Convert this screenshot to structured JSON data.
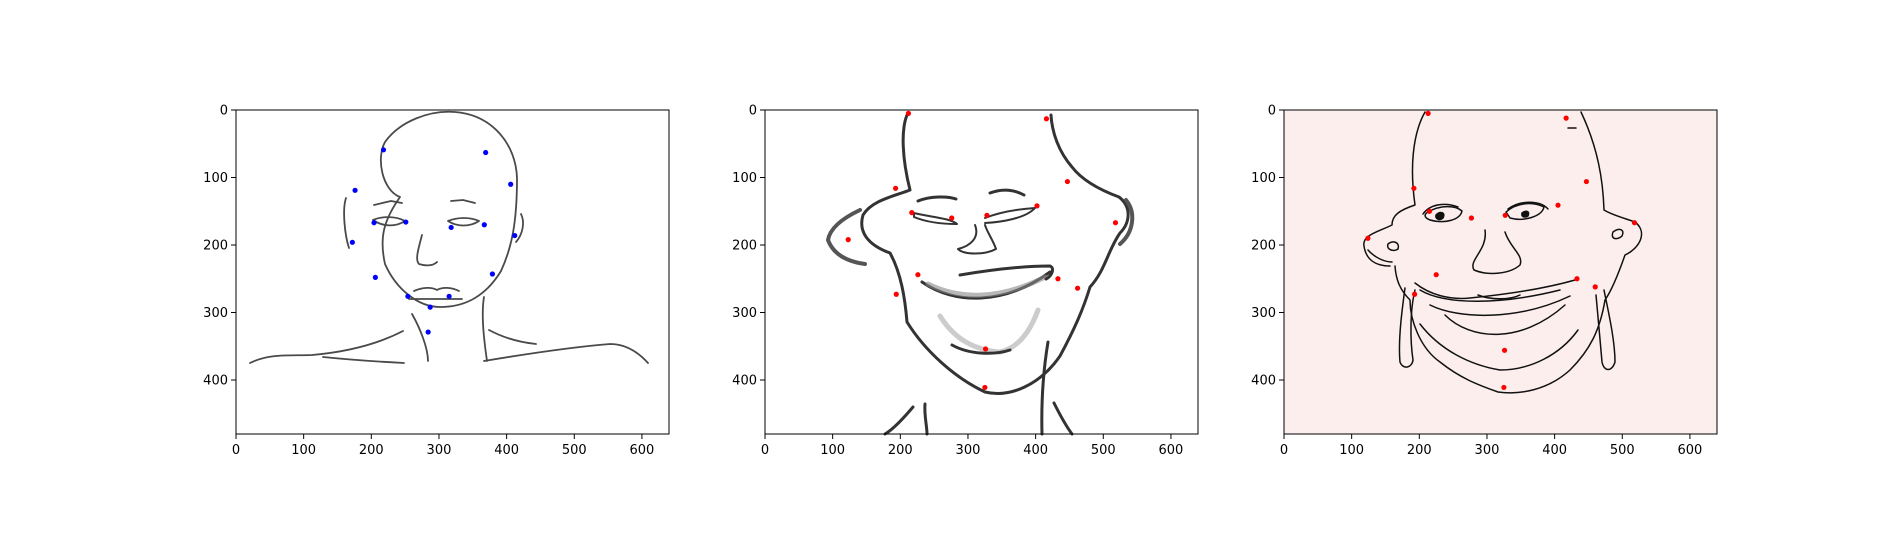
{
  "figure": {
    "background": "#ffffff",
    "panel_count": 3
  },
  "chart_data": [
    {
      "type": "scatter",
      "title": "",
      "xlabel": "",
      "ylabel": "",
      "xlim": [
        0,
        640
      ],
      "ylim": [
        480,
        0
      ],
      "y_inverted": true,
      "grid": false,
      "xticks": [
        0,
        100,
        200,
        300,
        400,
        500,
        600
      ],
      "yticks": [
        0,
        100,
        200,
        300,
        400
      ],
      "image_description": "line sketch of a neutral face with neck and shoulders",
      "image_background": "#ffffff",
      "point_color": "#0000ff",
      "points": {
        "x": [
          218,
          369,
          176,
          406,
          172,
          412,
          206,
          379,
          204,
          251,
          318,
          367,
          254,
          287,
          315,
          284
        ],
        "y": [
          59,
          63,
          119,
          110,
          196,
          186,
          248,
          243,
          167,
          166,
          174,
          170,
          276,
          292,
          276,
          329
        ]
      }
    },
    {
      "type": "scatter",
      "title": "",
      "xlabel": "",
      "ylabel": "",
      "xlim": [
        0,
        640
      ],
      "ylim": [
        480,
        0
      ],
      "y_inverted": true,
      "grid": false,
      "xticks": [
        0,
        100,
        200,
        300,
        400,
        500,
        600
      ],
      "yticks": [
        0,
        100,
        200,
        300,
        400
      ],
      "image_description": "warped caricature sketch of a laughing face",
      "image_background": "#ffffff",
      "point_color": "#ff0000",
      "points": {
        "x": [
          212,
          416,
          193,
          447,
          123,
          518,
          194,
          462,
          217,
          402,
          226,
          433,
          276,
          328,
          326,
          325
        ],
        "y": [
          5,
          13,
          116,
          106,
          192,
          167,
          273,
          264,
          152,
          142,
          244,
          250,
          160,
          156,
          354,
          411
        ]
      }
    },
    {
      "type": "scatter",
      "title": "",
      "xlabel": "",
      "ylabel": "",
      "xlim": [
        0,
        640
      ],
      "ylim": [
        480,
        0
      ],
      "y_inverted": true,
      "grid": false,
      "xticks": [
        0,
        100,
        200,
        300,
        400,
        500,
        600
      ],
      "yticks": [
        0,
        100,
        200,
        300,
        400
      ],
      "image_description": "caricature line drawing of a smiling face on a light pink background",
      "image_background": "#fdeeee",
      "point_color": "#ff0000",
      "points": {
        "x": [
          213,
          417,
          192,
          447,
          124,
          518,
          193,
          460,
          215,
          405,
          225,
          433,
          277,
          327,
          326,
          325
        ],
        "y": [
          5,
          12,
          116,
          106,
          190,
          167,
          273,
          262,
          150,
          141,
          244,
          250,
          160,
          156,
          356,
          411
        ]
      }
    }
  ]
}
